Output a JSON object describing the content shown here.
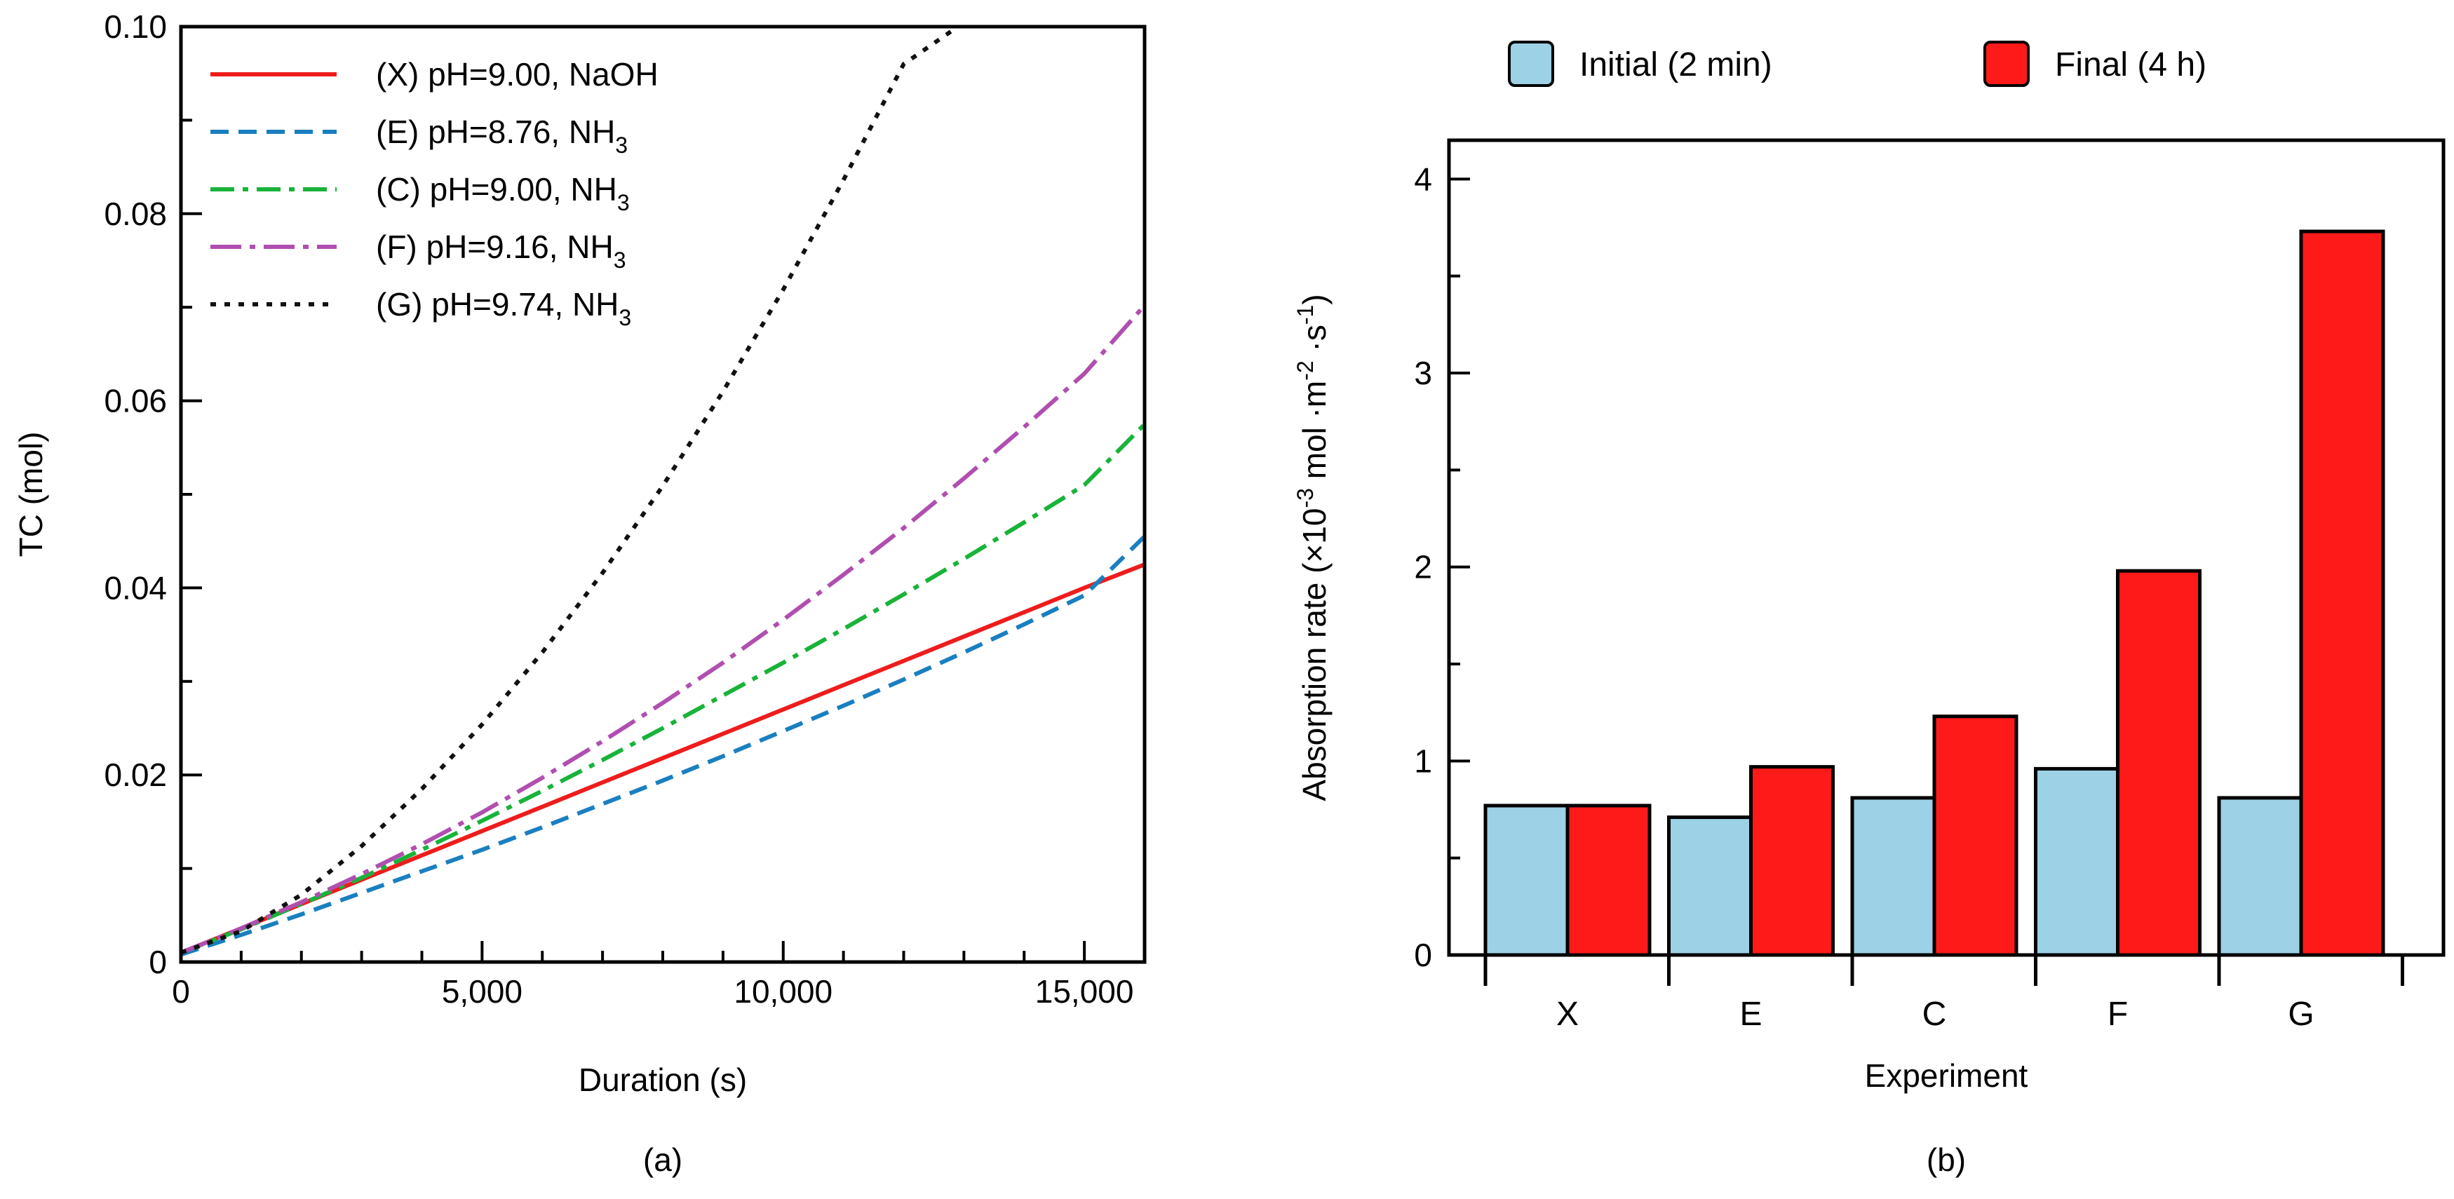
{
  "chart_data": [
    {
      "type": "line",
      "panel_label": "(a)",
      "xlabel": "Duration (s)",
      "ylabel": "TC (mol)",
      "xlim": [
        0,
        16000
      ],
      "ylim": [
        0,
        0.1
      ],
      "xticks": [
        0,
        5000,
        10000,
        15000
      ],
      "xtick_labels": [
        "0",
        "5,000",
        "10,000",
        "15,000"
      ],
      "yticks": [
        0,
        0.02,
        0.04,
        0.06,
        0.08,
        0.1
      ],
      "ytick_labels": [
        "0",
        "0.02",
        "0.04",
        "0.06",
        "0.08",
        "0.10"
      ],
      "legend_position": "top-left",
      "series": [
        {
          "id": "X",
          "label": "(X) pH=9.00, NaOH",
          "label_main": "(X) pH=9.00, NaOH",
          "label_sub": "",
          "color": "#ee1c1c",
          "dash": "solid",
          "x": [
            0,
            1000,
            2000,
            3000,
            4000,
            5000,
            6000,
            7000,
            8000,
            9000,
            10000,
            11000,
            12000,
            13000,
            14000,
            15000,
            16000
          ],
          "y": [
            0.001,
            0.0036,
            0.0062,
            0.0088,
            0.0114,
            0.014,
            0.0166,
            0.0192,
            0.0218,
            0.0244,
            0.027,
            0.0296,
            0.0322,
            0.0348,
            0.0374,
            0.04,
            0.0425
          ]
        },
        {
          "id": "E",
          "label": "(E) pH=8.76, NH3",
          "label_main": "(E) pH=8.76, NH",
          "label_sub": "3",
          "color": "#1a7fc0",
          "dash": "dashed",
          "x": [
            0,
            1000,
            2000,
            3000,
            4000,
            5000,
            6000,
            7000,
            8000,
            9000,
            10000,
            11000,
            12000,
            13000,
            14000,
            15000,
            16000
          ],
          "y": [
            0.0008,
            0.0029,
            0.0051,
            0.0074,
            0.0097,
            0.012,
            0.0144,
            0.0169,
            0.0194,
            0.022,
            0.0247,
            0.0274,
            0.0302,
            0.0331,
            0.0361,
            0.0392,
            0.0455
          ]
        },
        {
          "id": "C",
          "label": "(C) pH=9.00, NH3",
          "label_main": "(C) pH=9.00, NH",
          "label_sub": "3",
          "color": "#19b33a",
          "dash": "dashdot",
          "x": [
            0,
            1000,
            2000,
            3000,
            4000,
            5000,
            6000,
            7000,
            8000,
            9000,
            10000,
            11000,
            12000,
            13000,
            14000,
            15000,
            16000
          ],
          "y": [
            0.001,
            0.0035,
            0.0062,
            0.009,
            0.012,
            0.0151,
            0.0183,
            0.0216,
            0.025,
            0.0285,
            0.032,
            0.0356,
            0.0393,
            0.0431,
            0.047,
            0.051,
            0.0575
          ]
        },
        {
          "id": "F",
          "label": "(F) pH=9.16, NH3",
          "label_main": "(F) pH=9.16, NH",
          "label_sub": "3",
          "color": "#b04fb0",
          "dash": "dashdotlong",
          "x": [
            0,
            1000,
            2000,
            3000,
            4000,
            5000,
            6000,
            7000,
            8000,
            9000,
            10000,
            11000,
            12000,
            13000,
            14000,
            15000,
            16000
          ],
          "y": [
            0.001,
            0.0036,
            0.0064,
            0.0094,
            0.0126,
            0.016,
            0.0197,
            0.0236,
            0.0277,
            0.032,
            0.0366,
            0.0414,
            0.0464,
            0.0517,
            0.0572,
            0.0629,
            0.0702
          ]
        },
        {
          "id": "G",
          "label": "(G) pH=9.74, NH3",
          "label_main": "(G) pH=9.74, NH",
          "label_sub": "3",
          "color": "#111111",
          "dash": "dotted",
          "x": [
            0,
            1000,
            2000,
            3000,
            4000,
            5000,
            6000,
            7000,
            8000,
            9000,
            10000,
            11000,
            12000,
            12900
          ],
          "y": [
            0.001,
            0.0033,
            0.0072,
            0.0124,
            0.0185,
            0.0254,
            0.0331,
            0.0416,
            0.0509,
            0.061,
            0.0719,
            0.0836,
            0.096,
            0.1
          ]
        }
      ]
    },
    {
      "type": "bar",
      "panel_label": "(b)",
      "xlabel": "Experiment",
      "ylabel_main": "Absorption rate (×10",
      "ylabel_sup1": "-3",
      "ylabel_mid": " mol ·m",
      "ylabel_sup2": "-2",
      "ylabel_mid2": " ·s",
      "ylabel_sup3": "-1",
      "ylabel_end": ")",
      "ylim": [
        0,
        4.2
      ],
      "yticks": [
        0,
        1,
        2,
        3,
        4
      ],
      "ytick_labels": [
        "0",
        "1",
        "2",
        "3",
        "4"
      ],
      "categories": [
        "X",
        "E",
        "C",
        "F",
        "G"
      ],
      "legend_position": "top",
      "series": [
        {
          "name": "Initial (2 min)",
          "color": "#9dd1e5",
          "values": [
            0.77,
            0.71,
            0.81,
            0.96,
            0.81
          ]
        },
        {
          "name": "Final (4 h)",
          "color": "#ff1a1a",
          "values": [
            0.77,
            0.97,
            1.23,
            1.98,
            3.73
          ]
        }
      ]
    }
  ]
}
